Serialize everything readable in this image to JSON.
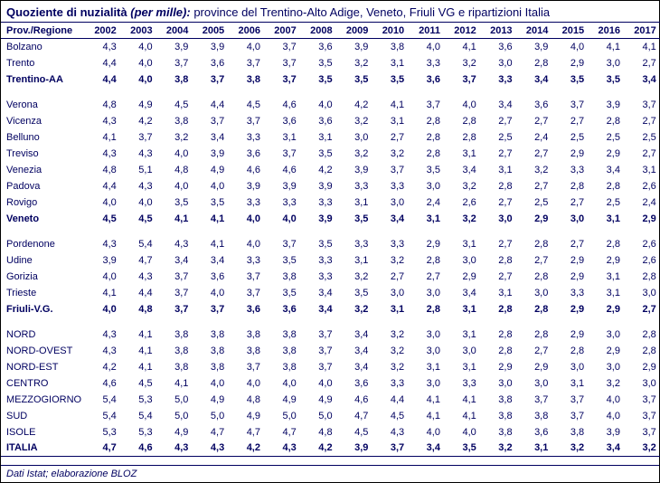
{
  "title_prefix": "Quoziente di nuzialità ",
  "title_em": "(per mille):",
  "title_suffix": " province del Trentino-Alto Adige, Veneto, Friuli VG e ripartizioni Italia",
  "footer": "Dati Istat; elaborazione BLOZ",
  "colors": {
    "text": "#000060",
    "border": "#000060",
    "background": "#ffffff"
  },
  "fontsize": {
    "title": 13,
    "body": 11
  },
  "columns": [
    "Prov./Regione",
    "2002",
    "2003",
    "2004",
    "2005",
    "2006",
    "2007",
    "2008",
    "2009",
    "2010",
    "2011",
    "2012",
    "2013",
    "2014",
    "2015",
    "2016",
    "2017"
  ],
  "rows": [
    {
      "label": "Bolzano",
      "v": [
        "4,3",
        "4,0",
        "3,9",
        "3,9",
        "4,0",
        "3,7",
        "3,6",
        "3,9",
        "3,8",
        "4,0",
        "4,1",
        "3,6",
        "3,9",
        "4,0",
        "4,1",
        "4,1"
      ]
    },
    {
      "label": "Trento",
      "v": [
        "4,4",
        "4,0",
        "3,7",
        "3,6",
        "3,7",
        "3,7",
        "3,5",
        "3,2",
        "3,1",
        "3,3",
        "3,2",
        "3,0",
        "2,8",
        "2,9",
        "3,0",
        "2,7"
      ]
    },
    {
      "label": "Trentino-AA",
      "bold": true,
      "v": [
        "4,4",
        "4,0",
        "3,8",
        "3,7",
        "3,8",
        "3,7",
        "3,5",
        "3,5",
        "3,5",
        "3,6",
        "3,7",
        "3,3",
        "3,4",
        "3,5",
        "3,5",
        "3,4"
      ]
    },
    {
      "spacer": true
    },
    {
      "label": "Verona",
      "v": [
        "4,8",
        "4,9",
        "4,5",
        "4,4",
        "4,5",
        "4,6",
        "4,0",
        "4,2",
        "4,1",
        "3,7",
        "4,0",
        "3,4",
        "3,6",
        "3,7",
        "3,9",
        "3,7"
      ]
    },
    {
      "label": "Vicenza",
      "v": [
        "4,3",
        "4,2",
        "3,8",
        "3,7",
        "3,7",
        "3,6",
        "3,6",
        "3,2",
        "3,1",
        "2,8",
        "2,8",
        "2,7",
        "2,7",
        "2,7",
        "2,8",
        "2,7"
      ]
    },
    {
      "label": "Belluno",
      "v": [
        "4,1",
        "3,7",
        "3,2",
        "3,4",
        "3,3",
        "3,1",
        "3,1",
        "3,0",
        "2,7",
        "2,8",
        "2,8",
        "2,5",
        "2,4",
        "2,5",
        "2,5",
        "2,5"
      ]
    },
    {
      "label": "Treviso",
      "v": [
        "4,3",
        "4,3",
        "4,0",
        "3,9",
        "3,6",
        "3,7",
        "3,5",
        "3,2",
        "3,2",
        "2,8",
        "3,1",
        "2,7",
        "2,7",
        "2,9",
        "2,9",
        "2,7"
      ]
    },
    {
      "label": "Venezia",
      "v": [
        "4,8",
        "5,1",
        "4,8",
        "4,9",
        "4,6",
        "4,6",
        "4,2",
        "3,9",
        "3,7",
        "3,5",
        "3,4",
        "3,1",
        "3,2",
        "3,3",
        "3,4",
        "3,1"
      ]
    },
    {
      "label": "Padova",
      "v": [
        "4,4",
        "4,3",
        "4,0",
        "4,0",
        "3,9",
        "3,9",
        "3,9",
        "3,3",
        "3,3",
        "3,0",
        "3,2",
        "2,8",
        "2,7",
        "2,8",
        "2,8",
        "2,6"
      ]
    },
    {
      "label": "Rovigo",
      "v": [
        "4,0",
        "4,0",
        "3,5",
        "3,5",
        "3,3",
        "3,3",
        "3,3",
        "3,1",
        "3,0",
        "2,4",
        "2,6",
        "2,7",
        "2,5",
        "2,7",
        "2,5",
        "2,4"
      ]
    },
    {
      "label": "Veneto",
      "bold": true,
      "v": [
        "4,5",
        "4,5",
        "4,1",
        "4,1",
        "4,0",
        "4,0",
        "3,9",
        "3,5",
        "3,4",
        "3,1",
        "3,2",
        "3,0",
        "2,9",
        "3,0",
        "3,1",
        "2,9"
      ]
    },
    {
      "spacer": true
    },
    {
      "label": "Pordenone",
      "v": [
        "4,3",
        "5,4",
        "4,3",
        "4,1",
        "4,0",
        "3,7",
        "3,5",
        "3,3",
        "3,3",
        "2,9",
        "3,1",
        "2,7",
        "2,8",
        "2,7",
        "2,8",
        "2,6"
      ]
    },
    {
      "label": "Udine",
      "v": [
        "3,9",
        "4,7",
        "3,4",
        "3,4",
        "3,3",
        "3,5",
        "3,3",
        "3,1",
        "3,2",
        "2,8",
        "3,0",
        "2,8",
        "2,7",
        "2,9",
        "2,9",
        "2,6"
      ]
    },
    {
      "label": "Gorizia",
      "v": [
        "4,0",
        "4,3",
        "3,7",
        "3,6",
        "3,7",
        "3,8",
        "3,3",
        "3,2",
        "2,7",
        "2,7",
        "2,9",
        "2,7",
        "2,8",
        "2,9",
        "3,1",
        "2,8"
      ]
    },
    {
      "label": "Trieste",
      "v": [
        "4,1",
        "4,4",
        "3,7",
        "4,0",
        "3,7",
        "3,5",
        "3,4",
        "3,5",
        "3,0",
        "3,0",
        "3,4",
        "3,1",
        "3,0",
        "3,3",
        "3,1",
        "3,0"
      ]
    },
    {
      "label": "Friuli-V.G.",
      "bold": true,
      "v": [
        "4,0",
        "4,8",
        "3,7",
        "3,7",
        "3,6",
        "3,6",
        "3,4",
        "3,2",
        "3,1",
        "2,8",
        "3,1",
        "2,8",
        "2,8",
        "2,9",
        "2,9",
        "2,7"
      ]
    },
    {
      "spacer": true
    },
    {
      "label": "NORD",
      "v": [
        "4,3",
        "4,1",
        "3,8",
        "3,8",
        "3,8",
        "3,8",
        "3,7",
        "3,4",
        "3,2",
        "3,0",
        "3,1",
        "2,8",
        "2,8",
        "2,9",
        "3,0",
        "2,8"
      ]
    },
    {
      "label": "NORD-OVEST",
      "v": [
        "4,3",
        "4,1",
        "3,8",
        "3,8",
        "3,8",
        "3,8",
        "3,7",
        "3,4",
        "3,2",
        "3,0",
        "3,0",
        "2,8",
        "2,7",
        "2,8",
        "2,9",
        "2,8"
      ]
    },
    {
      "label": "NORD-EST",
      "v": [
        "4,2",
        "4,1",
        "3,8",
        "3,8",
        "3,7",
        "3,8",
        "3,7",
        "3,4",
        "3,2",
        "3,1",
        "3,1",
        "2,9",
        "2,9",
        "3,0",
        "3,0",
        "2,9"
      ]
    },
    {
      "label": "CENTRO",
      "v": [
        "4,6",
        "4,5",
        "4,1",
        "4,0",
        "4,0",
        "4,0",
        "4,0",
        "3,6",
        "3,3",
        "3,0",
        "3,3",
        "3,0",
        "3,0",
        "3,1",
        "3,2",
        "3,0"
      ]
    },
    {
      "label": "MEZZOGIORNO",
      "v": [
        "5,4",
        "5,3",
        "5,0",
        "4,9",
        "4,8",
        "4,9",
        "4,9",
        "4,6",
        "4,4",
        "4,1",
        "4,1",
        "3,8",
        "3,7",
        "3,7",
        "4,0",
        "3,7"
      ]
    },
    {
      "label": "SUD",
      "v": [
        "5,4",
        "5,4",
        "5,0",
        "5,0",
        "4,9",
        "5,0",
        "5,0",
        "4,7",
        "4,5",
        "4,1",
        "4,1",
        "3,8",
        "3,8",
        "3,7",
        "4,0",
        "3,7"
      ]
    },
    {
      "label": "ISOLE",
      "v": [
        "5,3",
        "5,3",
        "4,9",
        "4,7",
        "4,7",
        "4,7",
        "4,8",
        "4,5",
        "4,3",
        "4,0",
        "4,0",
        "3,8",
        "3,6",
        "3,8",
        "3,9",
        "3,7"
      ]
    },
    {
      "label": "ITALIA",
      "bold": true,
      "last": true,
      "v": [
        "4,7",
        "4,6",
        "4,3",
        "4,3",
        "4,2",
        "4,3",
        "4,2",
        "3,9",
        "3,7",
        "3,4",
        "3,5",
        "3,2",
        "3,1",
        "3,2",
        "3,4",
        "3,2"
      ]
    }
  ]
}
